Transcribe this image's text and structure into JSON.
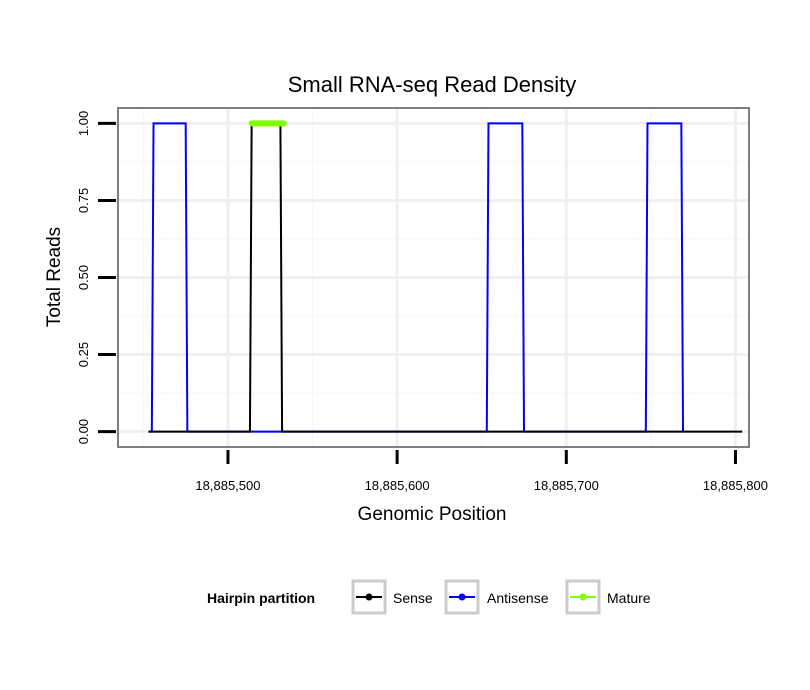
{
  "chart_data": {
    "type": "line",
    "title": "Small RNA-seq Read Density",
    "xlabel": "Genomic Position",
    "ylabel": "Total Reads",
    "xlim": [
      18885435,
      18885808
    ],
    "ylim": [
      -0.05,
      1.05
    ],
    "x_ticks": [
      18885500,
      18885600,
      18885700,
      18885800
    ],
    "x_tick_labels": [
      "18,885,500",
      "18,885,600",
      "18,885,700",
      "18,885,800"
    ],
    "y_ticks": [
      0,
      0.25,
      0.5,
      0.75,
      1.0
    ],
    "y_tick_labels": [
      "0.00",
      "0.25",
      "0.50",
      "0.75",
      "1.00"
    ],
    "grid": true,
    "legend_position": "bottom",
    "legend_title": "Hairpin partition",
    "series": [
      {
        "name": "Sense",
        "color": "#000000",
        "x": [
          18885453,
          18885513,
          18885514,
          18885531,
          18885532,
          18885804
        ],
        "y": [
          0,
          0,
          1,
          1,
          0,
          0
        ]
      },
      {
        "name": "Antisense",
        "color": "#0000ff",
        "x": [
          18885453,
          18885455,
          18885456,
          18885475,
          18885476,
          18885513,
          18885532,
          18885653,
          18885654,
          18885674,
          18885675,
          18885747,
          18885748,
          18885768,
          18885769
        ],
        "y": [
          0,
          0,
          1,
          1,
          0,
          0,
          0,
          0,
          1,
          1,
          0,
          0,
          1,
          1,
          0
        ]
      },
      {
        "name": "Mature",
        "color": "#7fff00",
        "x": [
          18885514,
          18885533
        ],
        "y": [
          1,
          1
        ]
      }
    ]
  }
}
